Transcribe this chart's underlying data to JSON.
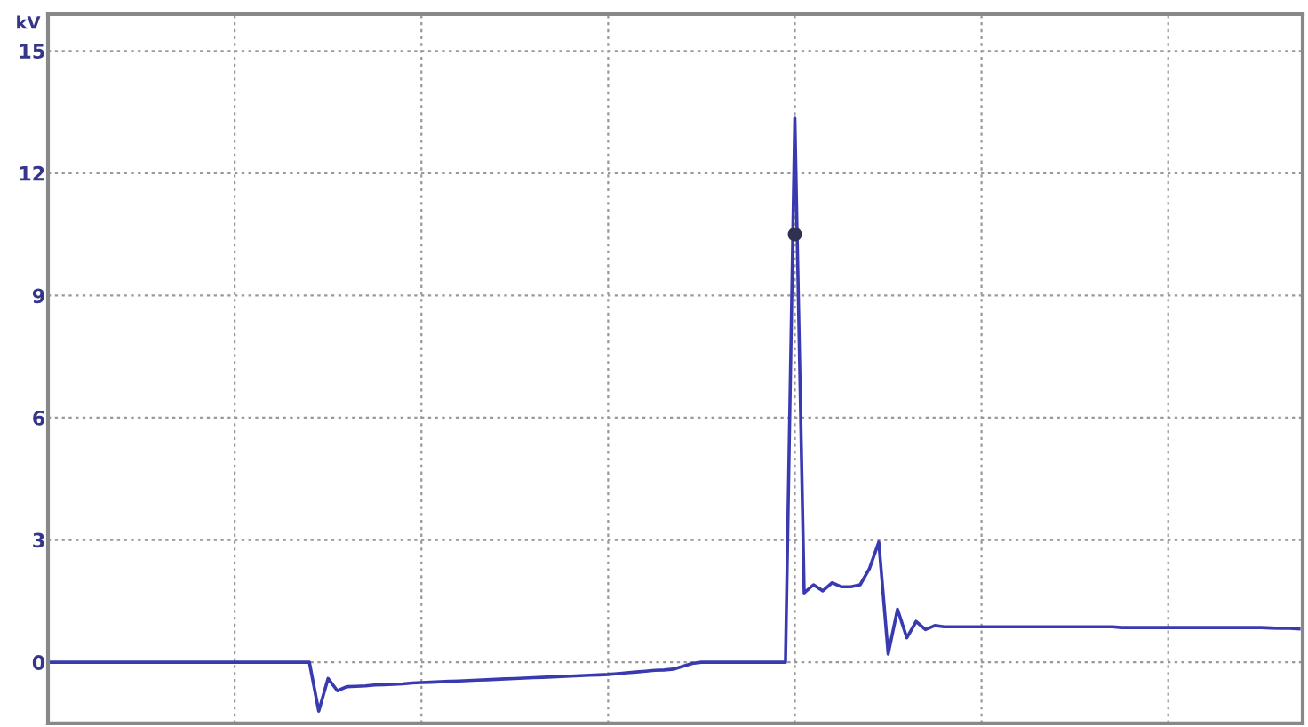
{
  "chart_data": {
    "type": "line",
    "ylabel": "kV",
    "tick_labels": "y",
    "grid": true,
    "line_style": "solid",
    "marker": "none",
    "ylim": [
      -1.5,
      15.9
    ],
    "yticks": [
      0,
      3,
      6,
      9,
      12,
      15
    ],
    "categories": [
      null,
      null,
      null,
      null,
      null,
      null,
      null,
      null,
      null,
      null,
      null,
      null,
      null,
      null,
      null,
      null,
      null,
      null,
      null,
      null,
      null,
      null,
      null,
      null,
      null,
      null,
      null,
      null,
      null,
      null,
      null,
      null,
      null,
      null,
      null,
      null,
      null,
      null,
      null,
      null,
      null,
      null,
      null,
      null,
      null,
      null,
      null,
      null,
      null,
      null,
      null,
      null,
      null,
      null,
      null,
      null,
      null,
      null,
      null,
      null,
      null,
      null,
      null,
      null,
      null,
      null,
      null,
      null,
      null,
      null,
      null,
      null,
      null,
      null,
      null,
      null,
      null,
      null,
      null,
      null,
      null,
      null,
      null,
      null,
      null,
      null,
      null,
      null,
      null,
      null,
      null,
      null,
      null,
      null,
      null,
      null,
      null,
      null,
      null,
      null,
      null,
      null,
      null,
      null,
      null,
      null,
      null,
      null,
      null,
      null,
      null,
      null,
      null,
      null,
      null,
      null,
      null,
      null,
      null,
      null,
      null,
      null,
      null,
      null,
      null,
      null,
      null,
      null,
      null,
      null,
      null,
      null,
      null,
      null,
      null
    ],
    "series": [
      {
        "color": "#3a3ab0",
        "values": [
          0,
          0,
          0,
          0,
          0,
          0,
          0,
          0,
          0,
          0,
          0,
          0,
          0,
          0,
          0,
          0,
          0,
          0,
          0,
          0,
          0,
          0,
          0,
          0,
          0,
          0,
          0,
          0,
          0,
          -1.2,
          -0.4,
          -0.7,
          -0.6,
          -0.59,
          -0.58,
          -0.56,
          -0.55,
          -0.54,
          -0.53,
          -0.51,
          -0.5,
          -0.49,
          -0.48,
          -0.47,
          -0.46,
          -0.45,
          -0.44,
          -0.43,
          -0.42,
          -0.41,
          -0.4,
          -0.39,
          -0.38,
          -0.37,
          -0.36,
          -0.35,
          -0.34,
          -0.33,
          -0.32,
          -0.31,
          -0.3,
          -0.28,
          -0.26,
          -0.24,
          -0.22,
          -0.2,
          -0.19,
          -0.17,
          -0.1,
          -0.03,
          0,
          0,
          0,
          0,
          0,
          0,
          0,
          0,
          0,
          0,
          13.35,
          1.7,
          1.9,
          1.75,
          1.95,
          1.85,
          1.85,
          1.9,
          2.3,
          2.95,
          0.2,
          1.3,
          0.6,
          1.0,
          0.8,
          0.9,
          0.87,
          0.87,
          0.87,
          0.87,
          0.87,
          0.87,
          0.87,
          0.87,
          0.87,
          0.87,
          0.87,
          0.87,
          0.87,
          0.87,
          0.87,
          0.87,
          0.87,
          0.87,
          0.87,
          0.85,
          0.85,
          0.85,
          0.85,
          0.85,
          0.85,
          0.85,
          0.85,
          0.85,
          0.85,
          0.85,
          0.85,
          0.85,
          0.85,
          0.85,
          0.85,
          0.84,
          0.83,
          0.83,
          0.82
        ]
      },
      {
        "type": "scatter",
        "color": "#303050",
        "marker": "circle",
        "values": [
          null,
          null,
          null,
          null,
          null,
          null,
          null,
          null,
          null,
          null,
          null,
          null,
          null,
          null,
          null,
          null,
          null,
          null,
          null,
          null,
          null,
          null,
          null,
          null,
          null,
          null,
          null,
          null,
          null,
          null,
          null,
          null,
          null,
          null,
          null,
          null,
          null,
          null,
          null,
          null,
          null,
          null,
          null,
          null,
          null,
          null,
          null,
          null,
          null,
          null,
          null,
          null,
          null,
          null,
          null,
          null,
          null,
          null,
          null,
          null,
          null,
          null,
          null,
          null,
          null,
          null,
          null,
          null,
          null,
          null,
          null,
          null,
          null,
          null,
          null,
          null,
          null,
          null,
          null,
          null,
          10.5,
          null,
          null,
          null,
          null,
          null,
          null,
          null,
          null,
          null,
          null,
          null,
          null,
          null,
          null,
          null,
          null,
          null,
          null,
          null,
          null,
          null,
          null,
          null,
          null,
          null,
          null,
          null,
          null,
          null,
          null,
          null,
          null,
          null,
          null,
          null,
          null,
          null,
          null,
          null,
          null,
          null,
          null,
          null,
          null,
          null,
          null,
          null,
          null,
          null,
          null,
          null,
          null,
          null,
          null
        ]
      }
    ]
  }
}
